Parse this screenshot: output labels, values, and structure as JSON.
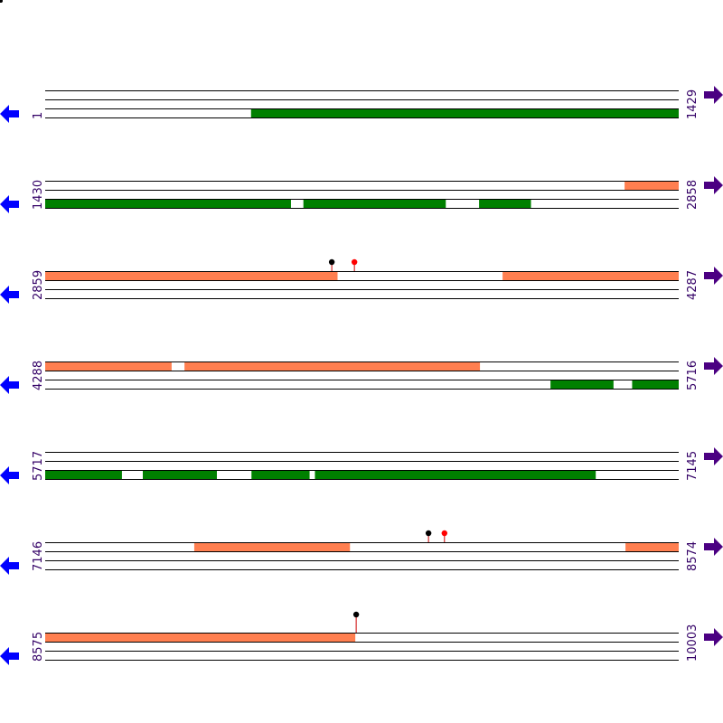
{
  "colors": {
    "forward_feature": "#ff7f50",
    "reverse_feature": "#008000",
    "track_line": "#000000",
    "coord_text": "#330066",
    "forward_arrow": "#4b0082",
    "reverse_arrow": "#0000ff",
    "marker_black": "#000000",
    "marker_red": "#ff0000",
    "marker_stem": "#cc0000"
  },
  "icons": {
    "left": "left-arrow-icon",
    "right": "right-arrow-icon"
  },
  "map": {
    "rows": [
      {
        "start": "1",
        "end": "1429",
        "start_value": 1,
        "end_value": 1429,
        "forward_features": [],
        "reverse_features": [
          [
            465,
            1429
          ]
        ],
        "markers": []
      },
      {
        "start": "1430",
        "end": "2858",
        "start_value": 1430,
        "end_value": 2858,
        "forward_features": [
          [
            2736,
            2858
          ]
        ],
        "reverse_features": [
          [
            1430,
            1984
          ],
          [
            2012,
            2333
          ],
          [
            2408,
            2525
          ]
        ],
        "markers": []
      },
      {
        "start": "2859",
        "end": "4287",
        "start_value": 2859,
        "end_value": 4287,
        "forward_features": [
          [
            2859,
            3518
          ],
          [
            3890,
            4287
          ]
        ],
        "reverse_features": [],
        "markers": [
          {
            "position": 3505,
            "color": "black"
          },
          {
            "position": 3556,
            "color": "red"
          }
        ]
      },
      {
        "start": "4288",
        "end": "5716",
        "start_value": 4288,
        "end_value": 5716,
        "forward_features": [
          [
            4288,
            4573
          ],
          [
            4602,
            5268
          ]
        ],
        "reverse_features": [
          [
            5427,
            5569
          ],
          [
            5611,
            5716
          ]
        ],
        "markers": []
      },
      {
        "start": "5717",
        "end": "7145",
        "start_value": 5717,
        "end_value": 7145,
        "forward_features": [],
        "reverse_features": [
          [
            5717,
            5890
          ],
          [
            5937,
            6104
          ],
          [
            6182,
            6313
          ],
          [
            6325,
            6958
          ]
        ],
        "markers": []
      },
      {
        "start": "7146",
        "end": "8574",
        "start_value": 7146,
        "end_value": 8574,
        "forward_features": [
          [
            7482,
            7833
          ],
          [
            8454,
            8574
          ]
        ],
        "reverse_features": [],
        "markers": [
          {
            "position": 8010,
            "color": "black"
          },
          {
            "position": 8046,
            "color": "red"
          }
        ]
      },
      {
        "start": "8575",
        "end": "10003",
        "start_value": 8575,
        "end_value": 10003,
        "forward_features": [
          [
            8575,
            9274
          ]
        ],
        "reverse_features": [],
        "markers": [
          {
            "position": 9276,
            "color": "black"
          }
        ]
      }
    ]
  }
}
